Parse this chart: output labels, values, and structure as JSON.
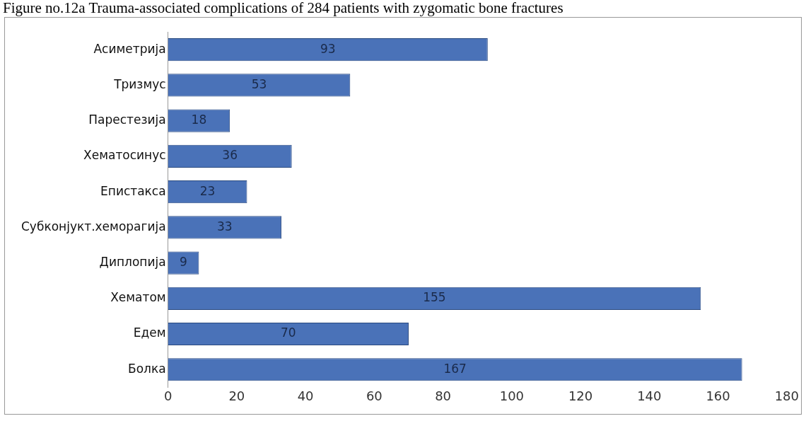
{
  "chart_data": {
    "type": "bar",
    "orientation": "horizontal",
    "title": "Figure no.12a Trauma-associated complications of 284 patients with zygomatic bone fractures",
    "categories": [
      "Асиметрија",
      "Тризмус",
      "Парестезија",
      "Хематосинус",
      "Епистакса",
      "Субконјукт.хеморагија",
      "Диплопија",
      "Хематом",
      "Едем",
      "Болка"
    ],
    "values": [
      93,
      53,
      18,
      36,
      23,
      33,
      9,
      155,
      70,
      167
    ],
    "color": "#4a72b8",
    "data_labels": true,
    "xlim": [
      0,
      180
    ],
    "xticks": [
      0,
      20,
      40,
      60,
      80,
      100,
      120,
      140,
      160,
      180
    ],
    "grid": false,
    "legend": false
  }
}
